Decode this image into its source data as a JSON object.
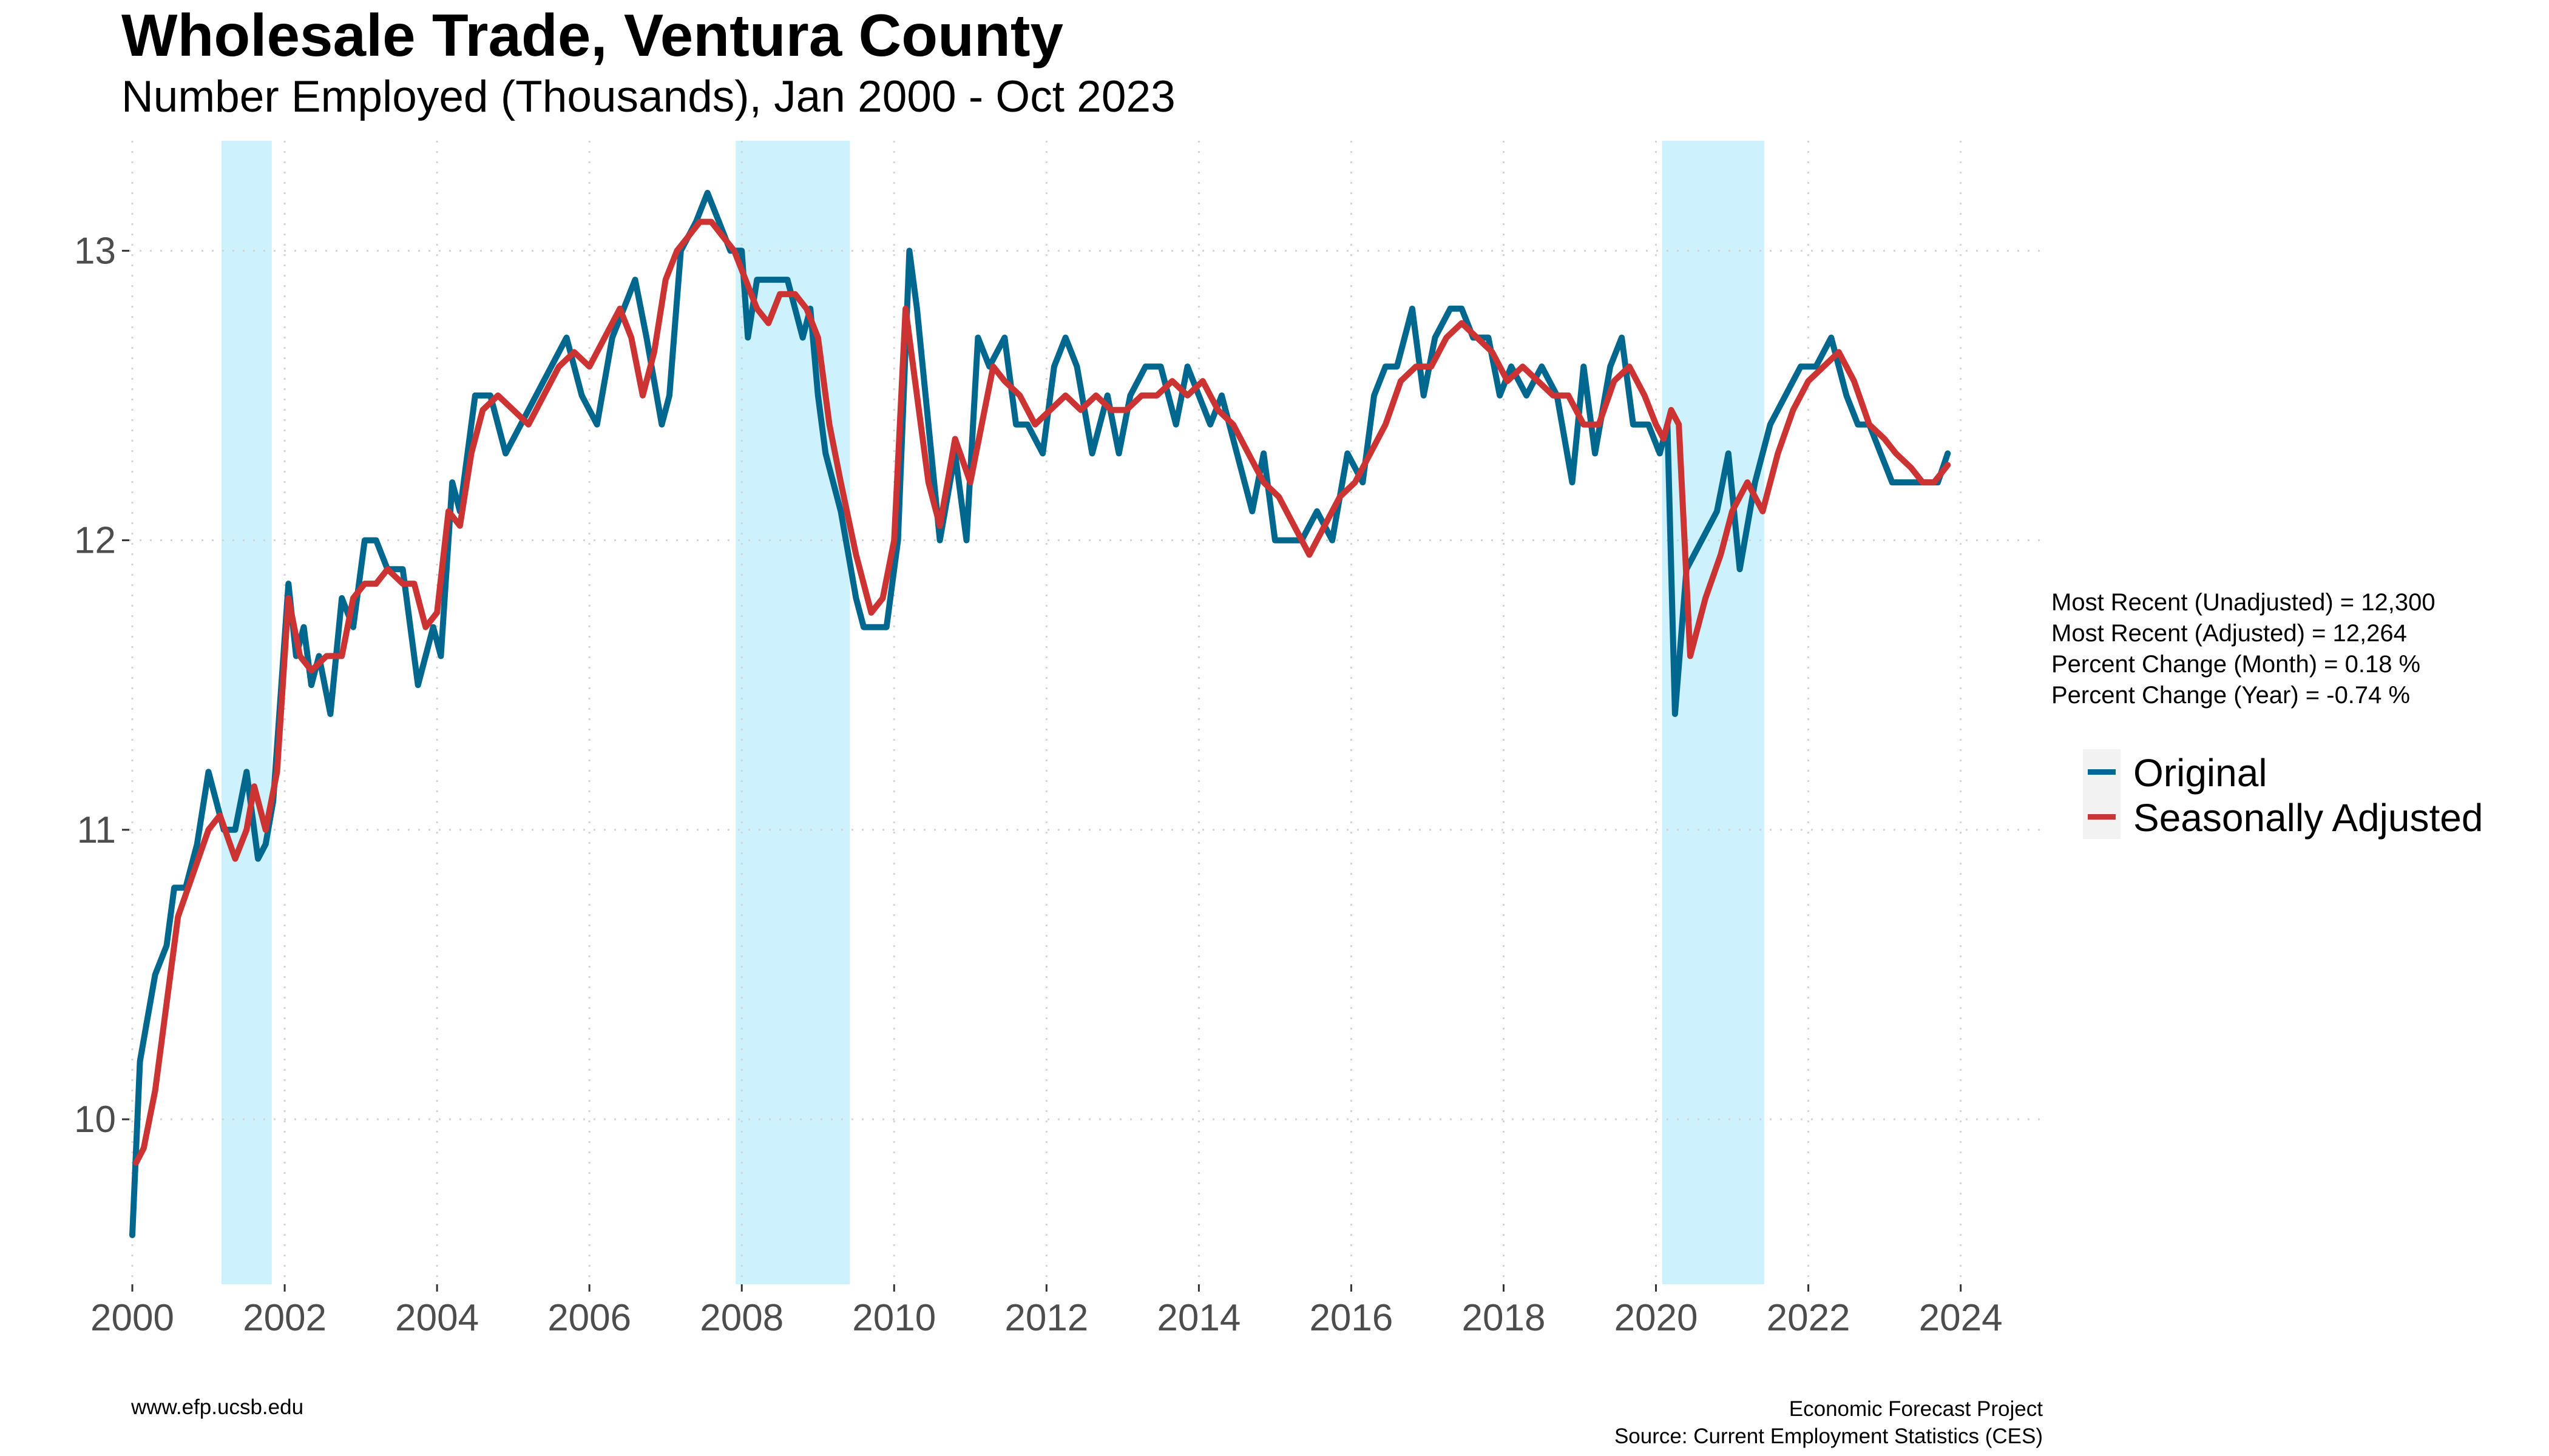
{
  "header": {
    "title": "Wholesale Trade, Ventura County",
    "subtitle": "Number Employed (Thousands), Jan 2000 - Oct 2023"
  },
  "stats": {
    "unadjusted": "Most Recent (Unadjusted) = 12,300",
    "adjusted": "Most Recent (Adjusted) = 12,264",
    "month_change": "Percent Change (Month) = 0.18 %",
    "year_change": "Percent Change (Year) = -0.74 %"
  },
  "legend": {
    "original": "Original",
    "adjusted": "Seasonally Adjusted"
  },
  "footer": {
    "left": "www.efp.ucsb.edu",
    "right_line1": "Economic Forecast Project",
    "right_line2": "Source: Current Employment Statistics (CES)"
  },
  "colors": {
    "original": "#00678e",
    "adjusted": "#cc3333",
    "recession": "#cdf1fd",
    "grid": "#d4d4d4",
    "tick_text": "#4d4d4d"
  },
  "chart_data": {
    "type": "line",
    "xlabel": "",
    "ylabel": "",
    "xlim": [
      1999.96,
      2025.15
    ],
    "ylim": [
      9.43,
      13.38
    ],
    "x_ticks": [
      "2000",
      "2002",
      "2004",
      "2006",
      "2008",
      "2010",
      "2012",
      "2014",
      "2016",
      "2018",
      "2020",
      "2022",
      "2024"
    ],
    "y_ticks": [
      "10",
      "11",
      "12",
      "13"
    ],
    "grid": true,
    "legend_position": "right",
    "recessions": [
      [
        2001.17,
        2001.83
      ],
      [
        2007.92,
        2009.42
      ],
      [
        2020.08,
        2021.42
      ]
    ],
    "series": [
      {
        "name": "Original",
        "key": "original",
        "x": [
          2000.0,
          2000.1,
          2000.2,
          2000.3,
          2000.45,
          2000.55,
          2000.7,
          2000.85,
          2001.0,
          2001.2,
          2001.35,
          2001.5,
          2001.65,
          2001.75,
          2001.85,
          2002.05,
          2002.15,
          2002.25,
          2002.35,
          2002.45,
          2002.6,
          2002.75,
          2002.9,
          2003.05,
          2003.2,
          2003.35,
          2003.55,
          2003.75,
          2003.95,
          2004.05,
          2004.2,
          2004.3,
          2004.5,
          2004.7,
          2004.9,
          2005.1,
          2005.3,
          2005.5,
          2005.7,
          2005.9,
          2006.1,
          2006.3,
          2006.45,
          2006.6,
          2006.75,
          2006.95,
          2007.05,
          2007.2,
          2007.4,
          2007.55,
          2007.7,
          2007.85,
          2008.0,
          2008.08,
          2008.2,
          2008.4,
          2008.6,
          2008.8,
          2008.9,
          2009.0,
          2009.1,
          2009.3,
          2009.5,
          2009.6,
          2009.75,
          2009.9,
          2010.05,
          2010.2,
          2010.3,
          2010.45,
          2010.6,
          2010.8,
          2010.95,
          2011.1,
          2011.25,
          2011.45,
          2011.6,
          2011.75,
          2011.95,
          2012.1,
          2012.25,
          2012.4,
          2012.6,
          2012.8,
          2012.95,
          2013.1,
          2013.3,
          2013.5,
          2013.7,
          2013.85,
          2014.0,
          2014.15,
          2014.3,
          2014.5,
          2014.7,
          2014.85,
          2015.0,
          2015.15,
          2015.35,
          2015.55,
          2015.75,
          2015.95,
          2016.15,
          2016.3,
          2016.45,
          2016.6,
          2016.8,
          2016.95,
          2017.1,
          2017.3,
          2017.45,
          2017.6,
          2017.8,
          2017.95,
          2018.1,
          2018.3,
          2018.5,
          2018.7,
          2018.9,
          2019.05,
          2019.2,
          2019.4,
          2019.55,
          2019.7,
          2019.9,
          2020.05,
          2020.15,
          2020.25,
          2020.4,
          2020.6,
          2020.8,
          2020.95,
          2021.1,
          2021.3,
          2021.5,
          2021.7,
          2021.9,
          2022.1,
          2022.3,
          2022.5,
          2022.65,
          2022.8,
          2022.95,
          2023.1,
          2023.25,
          2023.4,
          2023.55,
          2023.7,
          2023.83
        ],
        "values": [
          9.6,
          10.2,
          10.35,
          10.5,
          10.6,
          10.8,
          10.8,
          10.95,
          11.2,
          11.0,
          11.0,
          11.2,
          10.9,
          10.95,
          11.1,
          11.85,
          11.6,
          11.7,
          11.5,
          11.6,
          11.4,
          11.8,
          11.7,
          12.0,
          12.0,
          11.9,
          11.9,
          11.5,
          11.7,
          11.6,
          12.2,
          12.1,
          12.5,
          12.5,
          12.3,
          12.4,
          12.5,
          12.6,
          12.7,
          12.5,
          12.4,
          12.7,
          12.8,
          12.9,
          12.7,
          12.4,
          12.5,
          13.0,
          13.1,
          13.2,
          13.1,
          13.0,
          13.0,
          12.7,
          12.9,
          12.9,
          12.9,
          12.7,
          12.8,
          12.5,
          12.3,
          12.1,
          11.8,
          11.7,
          11.7,
          11.7,
          12.0,
          13.0,
          12.8,
          12.4,
          12.0,
          12.3,
          12.0,
          12.7,
          12.6,
          12.7,
          12.4,
          12.4,
          12.3,
          12.6,
          12.7,
          12.6,
          12.3,
          12.5,
          12.3,
          12.5,
          12.6,
          12.6,
          12.4,
          12.6,
          12.5,
          12.4,
          12.5,
          12.3,
          12.1,
          12.3,
          12.0,
          12.0,
          12.0,
          12.1,
          12.0,
          12.3,
          12.2,
          12.5,
          12.6,
          12.6,
          12.8,
          12.5,
          12.7,
          12.8,
          12.8,
          12.7,
          12.7,
          12.5,
          12.6,
          12.5,
          12.6,
          12.5,
          12.2,
          12.6,
          12.3,
          12.6,
          12.7,
          12.4,
          12.4,
          12.3,
          12.4,
          11.4,
          11.9,
          12.0,
          12.1,
          12.3,
          11.9,
          12.2,
          12.4,
          12.5,
          12.6,
          12.6,
          12.7,
          12.5,
          12.4,
          12.4,
          12.3,
          12.2,
          12.2,
          12.2,
          12.2,
          12.2,
          12.3
        ]
      },
      {
        "name": "Seasonally Adjusted",
        "key": "adjusted",
        "x": [
          2000.05,
          2000.15,
          2000.3,
          2000.45,
          2000.6,
          2000.8,
          2001.0,
          2001.15,
          2001.35,
          2001.5,
          2001.6,
          2001.75,
          2001.9,
          2002.05,
          2002.2,
          2002.35,
          2002.55,
          2002.75,
          2002.9,
          2003.05,
          2003.2,
          2003.35,
          2003.55,
          2003.7,
          2003.85,
          2004.0,
          2004.15,
          2004.3,
          2004.45,
          2004.6,
          2004.8,
          2005.0,
          2005.2,
          2005.4,
          2005.6,
          2005.8,
          2006.0,
          2006.2,
          2006.4,
          2006.55,
          2006.7,
          2006.85,
          2007.0,
          2007.15,
          2007.3,
          2007.45,
          2007.6,
          2007.75,
          2007.9,
          2008.05,
          2008.2,
          2008.35,
          2008.5,
          2008.7,
          2008.85,
          2009.0,
          2009.15,
          2009.3,
          2009.5,
          2009.7,
          2009.85,
          2010.0,
          2010.15,
          2010.3,
          2010.45,
          2010.6,
          2010.8,
          2011.0,
          2011.15,
          2011.3,
          2011.45,
          2011.65,
          2011.85,
          2012.05,
          2012.25,
          2012.45,
          2012.65,
          2012.85,
          2013.05,
          2013.25,
          2013.45,
          2013.65,
          2013.85,
          2014.05,
          2014.25,
          2014.45,
          2014.65,
          2014.85,
          2015.05,
          2015.25,
          2015.45,
          2015.65,
          2015.85,
          2016.05,
          2016.25,
          2016.45,
          2016.65,
          2016.85,
          2017.05,
          2017.25,
          2017.45,
          2017.65,
          2017.85,
          2018.05,
          2018.25,
          2018.45,
          2018.65,
          2018.85,
          2019.05,
          2019.25,
          2019.45,
          2019.65,
          2019.85,
          2020.0,
          2020.1,
          2020.2,
          2020.3,
          2020.45,
          2020.65,
          2020.85,
          2021.0,
          2021.2,
          2021.4,
          2021.6,
          2021.8,
          2022.0,
          2022.2,
          2022.4,
          2022.6,
          2022.8,
          2023.0,
          2023.15,
          2023.35,
          2023.5,
          2023.65,
          2023.83
        ],
        "values": [
          9.85,
          9.9,
          10.1,
          10.4,
          10.7,
          10.85,
          11.0,
          11.05,
          10.9,
          11.0,
          11.15,
          11.0,
          11.2,
          11.8,
          11.6,
          11.55,
          11.6,
          11.6,
          11.8,
          11.85,
          11.85,
          11.9,
          11.85,
          11.85,
          11.7,
          11.75,
          12.1,
          12.05,
          12.3,
          12.45,
          12.5,
          12.45,
          12.4,
          12.5,
          12.6,
          12.65,
          12.6,
          12.7,
          12.8,
          12.7,
          12.5,
          12.65,
          12.9,
          13.0,
          13.05,
          13.1,
          13.1,
          13.05,
          13.0,
          12.9,
          12.8,
          12.75,
          12.85,
          12.85,
          12.8,
          12.7,
          12.4,
          12.2,
          11.95,
          11.75,
          11.8,
          12.0,
          12.8,
          12.5,
          12.2,
          12.05,
          12.35,
          12.2,
          12.4,
          12.6,
          12.55,
          12.5,
          12.4,
          12.45,
          12.5,
          12.45,
          12.5,
          12.45,
          12.45,
          12.5,
          12.5,
          12.55,
          12.5,
          12.55,
          12.45,
          12.4,
          12.3,
          12.2,
          12.15,
          12.05,
          11.95,
          12.05,
          12.15,
          12.2,
          12.3,
          12.4,
          12.55,
          12.6,
          12.6,
          12.7,
          12.75,
          12.7,
          12.65,
          12.55,
          12.6,
          12.55,
          12.5,
          12.5,
          12.4,
          12.4,
          12.55,
          12.6,
          12.5,
          12.4,
          12.35,
          12.45,
          12.4,
          11.6,
          11.8,
          11.95,
          12.1,
          12.2,
          12.1,
          12.3,
          12.45,
          12.55,
          12.6,
          12.65,
          12.55,
          12.4,
          12.35,
          12.3,
          12.25,
          12.2,
          12.2,
          12.26
        ]
      }
    ]
  }
}
